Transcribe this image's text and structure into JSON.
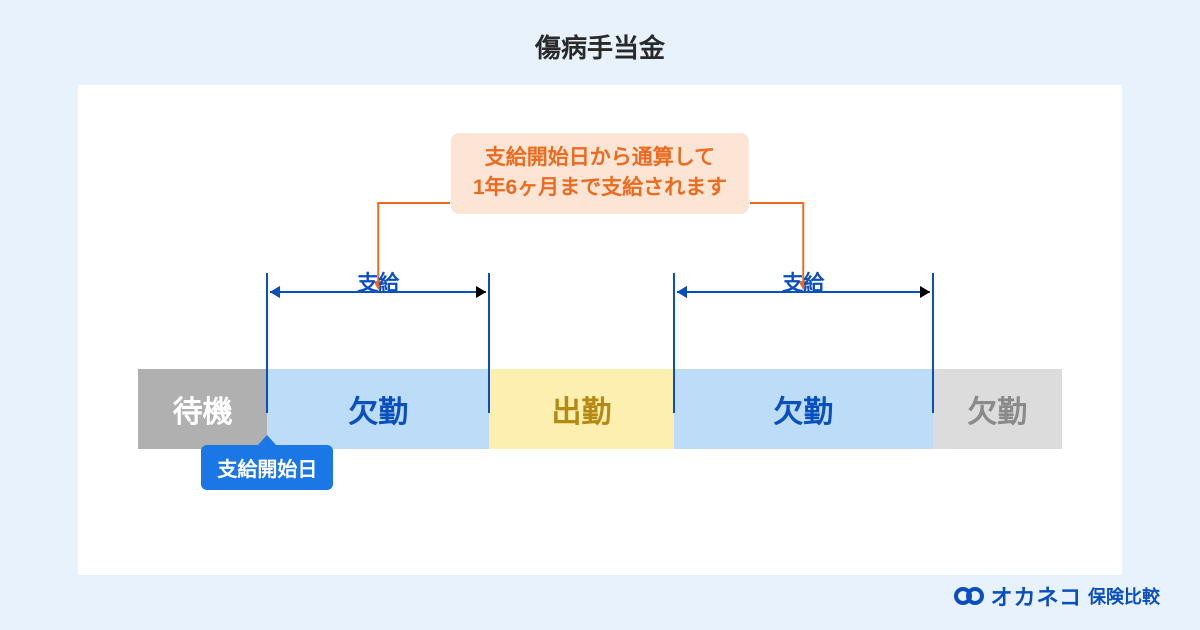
{
  "title": "傷病手当金",
  "callout": {
    "line1": "支給開始日から通算して",
    "line2": "1年6ヶ月まで支給されます",
    "text_color": "#ec6b1f",
    "bg_color": "#fde5d6",
    "arrow_color": "#ec6b1f"
  },
  "range_labels": {
    "label": "支給",
    "color": "#0a4fc0"
  },
  "tick_color": "#0a4fc0",
  "segments": [
    {
      "label": "待機",
      "bg": "#b0b0b0",
      "fg": "#ffffff",
      "width_pct": 14
    },
    {
      "label": "欠勤",
      "bg": "#bcdcf8",
      "fg": "#0a4fc0",
      "width_pct": 24
    },
    {
      "label": "出勤",
      "bg": "#fcefb0",
      "fg": "#b58a12",
      "width_pct": 20
    },
    {
      "label": "欠勤",
      "bg": "#bcdcf8",
      "fg": "#0a4fc0",
      "width_pct": 28
    },
    {
      "label": "欠勤",
      "bg": "#dcdcdc",
      "fg": "#8a8a8a",
      "width_pct": 14
    }
  ],
  "ticks_pct": [
    14,
    38,
    58,
    86
  ],
  "start_tag": {
    "label": "支給開始日",
    "pos_pct": 14
  },
  "logo": {
    "brand": "オカネコ",
    "suffix": "保険比較",
    "color": "#0a4fc0"
  },
  "colors": {
    "page_bg": "#e8f2fc",
    "panel_bg": "#ffffff",
    "title_fg": "#2a2a2a"
  }
}
